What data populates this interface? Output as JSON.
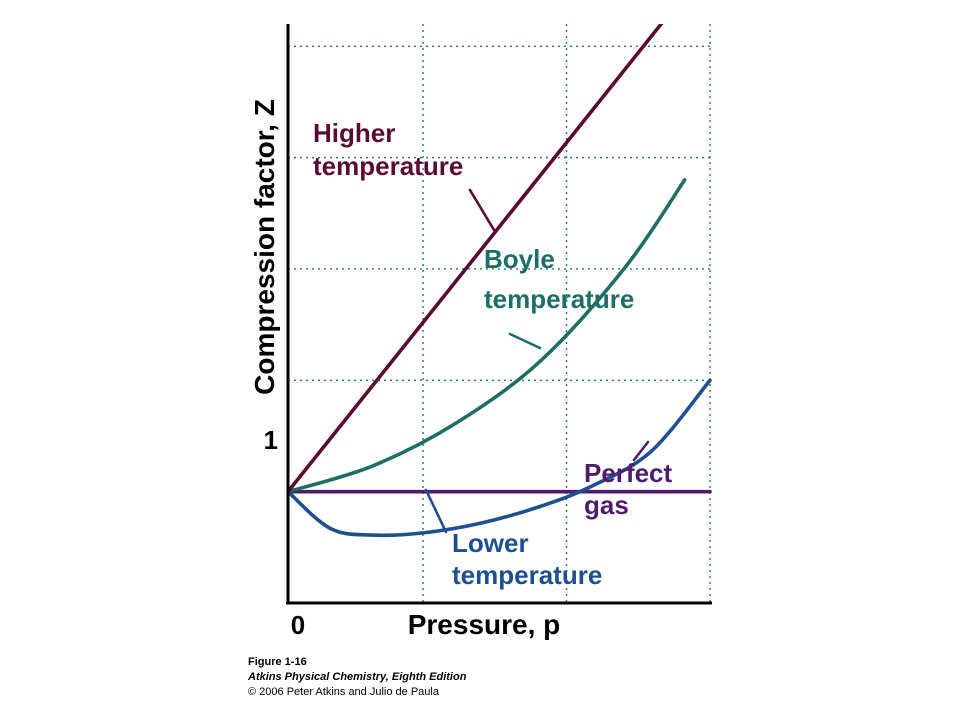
{
  "chart_data": {
    "type": "line",
    "xlabel": "Pressure, p",
    "ylabel": "Compression factor, Z",
    "x_tick_labels": [
      "0"
    ],
    "y_tick_labels": [
      "1"
    ],
    "grid": true,
    "xlim": [
      0,
      5
    ],
    "ylim": [
      0,
      5.2
    ],
    "series": [
      {
        "name": "Higher temperature",
        "color": "#5a0a35",
        "x": [
          0,
          5
        ],
        "y": [
          1,
          5.75
        ]
      },
      {
        "name": "Boyle temperature",
        "color": "#1c6e66",
        "x": [
          0,
          1,
          2,
          3,
          4,
          4.7
        ],
        "y": [
          1,
          1.23,
          1.62,
          2.18,
          3.02,
          3.8
        ]
      },
      {
        "name": "Perfect gas",
        "color": "#4f1b6e",
        "x": [
          0,
          5
        ],
        "y": [
          1,
          1
        ]
      },
      {
        "name": "Lower temperature",
        "color": "#1e4f91",
        "x": [
          0,
          0.5,
          1,
          1.6,
          2.3,
          3,
          3.6,
          4.3,
          5
        ],
        "y": [
          1,
          0.67,
          0.61,
          0.63,
          0.72,
          0.87,
          1.05,
          1.36,
          2.0
        ]
      }
    ]
  },
  "caption": {
    "figure": "Figure 1-16",
    "book": "Atkins Physical Chemistry, Eighth Edition",
    "copyright": "© 2006 Peter Atkins and Julio de Paula"
  }
}
